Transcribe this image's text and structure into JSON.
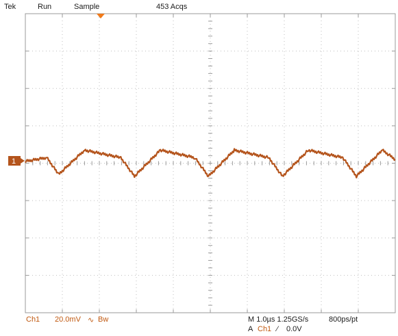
{
  "status_bar": {
    "brand": "Tek",
    "run_state": "Run",
    "acq_mode": "Sample",
    "acq_count": "453 Acqs"
  },
  "channel_marker": "1",
  "bottom": {
    "ch_label": "Ch1",
    "scale": "20.0mV",
    "coupling_symbol": "∿",
    "bw_label": "Bw",
    "timebase": "M 1.0µs 1.25GS/s",
    "resolution": "800ps/pt",
    "trigger_prefix": "A",
    "trigger_channel": "Ch1",
    "trigger_slope_symbol": "⁄",
    "trigger_level": "0.0V"
  },
  "colors": {
    "trace": "#b4541c",
    "grid": "#9a9a9a",
    "trigger_marker": "#f07a1a",
    "channel_label_text": "#c0580f"
  },
  "chart_data": {
    "type": "line",
    "title": "",
    "xlabel": "",
    "ylabel": "",
    "x_divisions": 10,
    "y_divisions": 8,
    "x_units_per_div": "1.0µs",
    "y_units_per_div": "20.0mV",
    "xlim": [
      0,
      10
    ],
    "ylim": [
      -4,
      4
    ],
    "grid": true,
    "series": [
      {
        "x": [
          0.0,
          0.58,
          0.9,
          1.6,
          2.58,
          2.95,
          3.65,
          4.58,
          4.95,
          5.65,
          6.58,
          6.95,
          7.65,
          8.58,
          8.95,
          9.65,
          10.0
        ],
        "y": [
          0.05,
          0.15,
          -0.3,
          0.35,
          0.15,
          -0.35,
          0.35,
          0.15,
          -0.35,
          0.35,
          0.15,
          -0.35,
          0.35,
          0.15,
          -0.35,
          0.35,
          0.1
        ]
      }
    ]
  }
}
